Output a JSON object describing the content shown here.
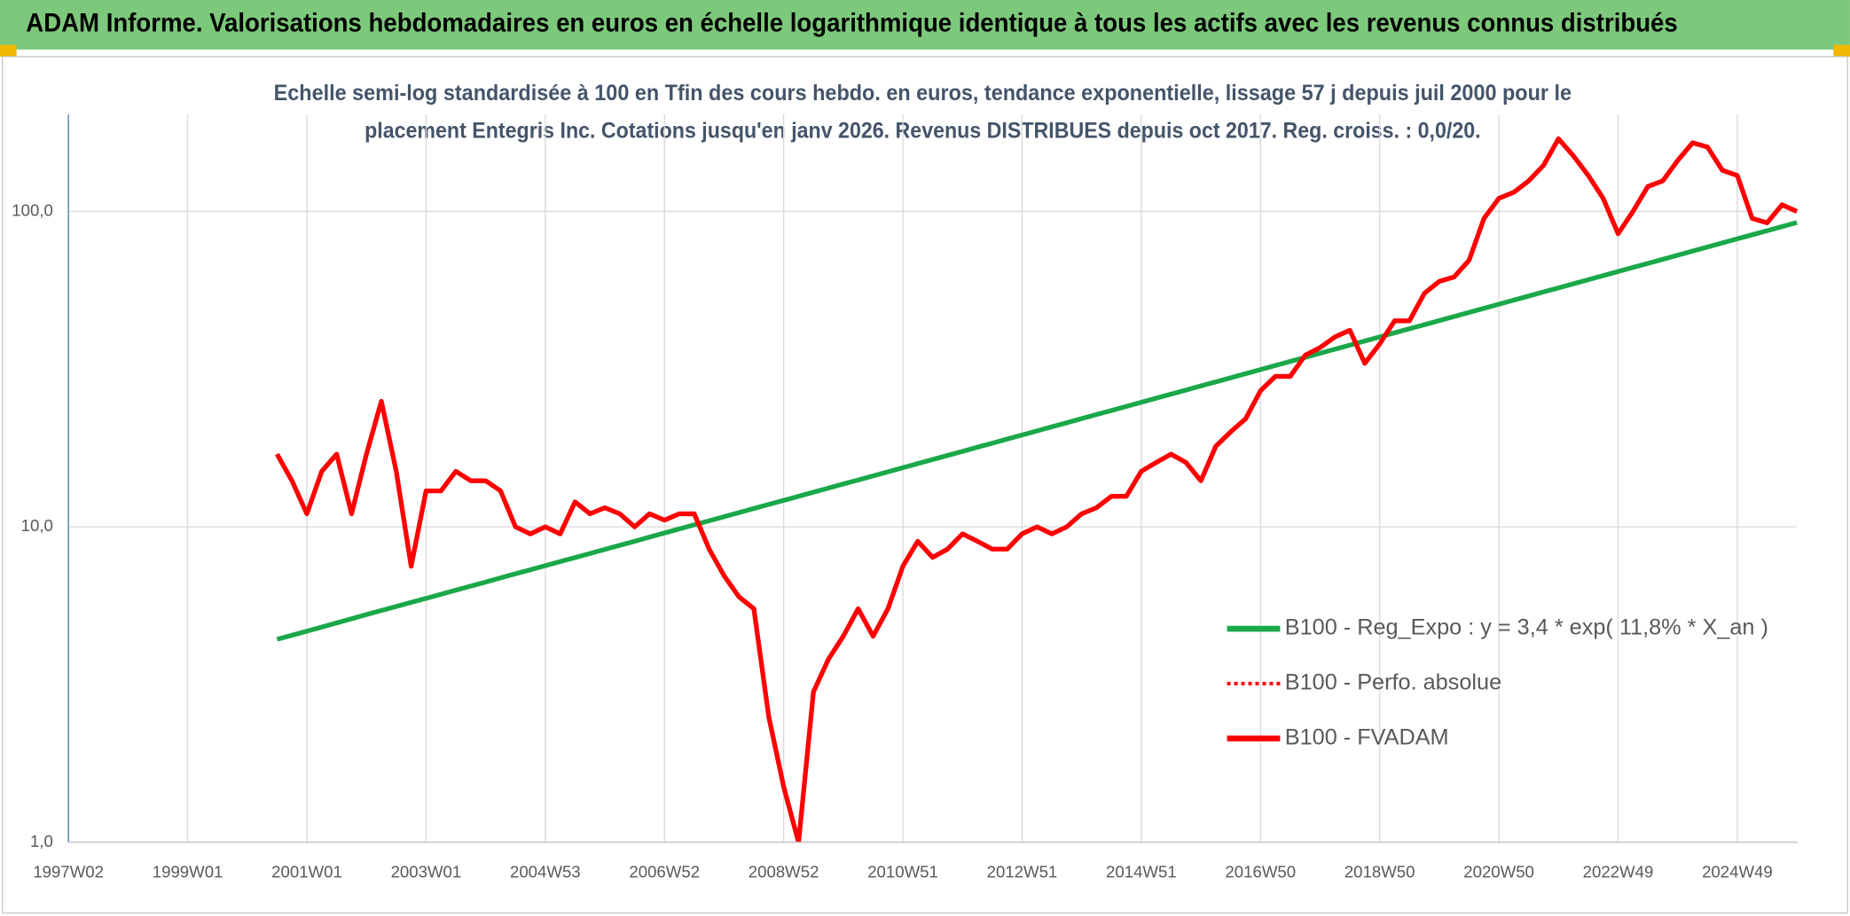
{
  "chart_data": {
    "type": "line",
    "title": "ADAM Informe. Valorisations hebdomadaires en euros en échelle logarithmique identique à tous les actifs avec les revenus connus distribués",
    "subtitle": [
      "Echelle semi-log standardisée à 100 en Tfin des cours hebdo. en euros, tendance exponentielle, lissage 57 j depuis juil 2000 pour le",
      "placement Entegris Inc. Cotations jusqu'en janv 2026. Revenus DISTRIBUES depuis oct 2017. Reg. croiss. : 0,0/20."
    ],
    "log_scale": true,
    "grid": true,
    "legend": "lower right",
    "ylim": [
      1,
      203
    ],
    "yticks": [
      {
        "value": 1,
        "label": "1,0"
      },
      {
        "value": 10,
        "label": "10,0"
      },
      {
        "value": 100,
        "label": "100,0"
      }
    ],
    "categories": [
      "1997W02",
      null,
      null,
      null,
      null,
      null,
      null,
      null,
      "1999W01",
      null,
      null,
      null,
      null,
      null,
      null,
      null,
      "2001W01",
      null,
      null,
      null,
      null,
      null,
      null,
      null,
      "2003W01",
      null,
      null,
      null,
      null,
      null,
      null,
      null,
      "2004W53",
      null,
      null,
      null,
      null,
      null,
      null,
      null,
      "2006W52",
      null,
      null,
      null,
      null,
      null,
      null,
      null,
      "2008W52",
      null,
      null,
      null,
      null,
      null,
      null,
      null,
      "2010W51",
      null,
      null,
      null,
      null,
      null,
      null,
      null,
      "2012W51",
      null,
      null,
      null,
      null,
      null,
      null,
      null,
      "2014W51",
      null,
      null,
      null,
      null,
      null,
      null,
      null,
      "2016W50",
      null,
      null,
      null,
      null,
      null,
      null,
      null,
      "2018W50",
      null,
      null,
      null,
      null,
      null,
      null,
      null,
      "2020W50",
      null,
      null,
      null,
      null,
      null,
      null,
      null,
      "2022W49",
      null,
      null,
      null,
      null,
      null,
      null,
      null,
      "2024W49",
      null,
      null,
      null,
      null
    ],
    "series": [
      {
        "name": "B100 - Reg_Expo : y = 3,4 * exp( 11,8% *  X_an )",
        "color": "#1aa84a",
        "style": "solid",
        "values": [
          null,
          null,
          null,
          null,
          null,
          null,
          null,
          null,
          null,
          null,
          null,
          null,
          null,
          null,
          4.4,
          4.53,
          4.67,
          4.81,
          4.96,
          5.11,
          5.27,
          5.43,
          5.59,
          5.76,
          5.93,
          6.11,
          6.3,
          6.49,
          6.68,
          6.89,
          7.1,
          7.31,
          7.53,
          7.76,
          7.99,
          8.23,
          8.48,
          8.74,
          9.0,
          9.28,
          9.56,
          9.85,
          10.15,
          10.45,
          10.77,
          11.1,
          11.43,
          11.78,
          12.13,
          12.5,
          12.88,
          13.27,
          13.67,
          14.08,
          14.51,
          14.95,
          15.4,
          15.87,
          16.35,
          16.84,
          17.35,
          17.88,
          18.42,
          18.98,
          19.55,
          20.14,
          20.75,
          21.38,
          22.03,
          22.7,
          23.38,
          24.09,
          24.82,
          25.57,
          26.35,
          27.14,
          27.97,
          28.81,
          29.69,
          30.59,
          31.51,
          32.47,
          33.45,
          34.46,
          35.51,
          36.58,
          37.69,
          38.83,
          40.01,
          41.22,
          42.47,
          43.75,
          45.08,
          46.44,
          47.85,
          49.3,
          50.79,
          52.33,
          53.91,
          55.55,
          57.23,
          58.96,
          60.75,
          62.59,
          64.48,
          66.43,
          68.44,
          70.52,
          72.65,
          74.85,
          77.12,
          79.45,
          81.86,
          84.33,
          86.89,
          89.52,
          92.23
        ]
      },
      {
        "name": "B100 - Perfo. absolue",
        "color": "#ff0000",
        "style": "dotted",
        "values": [
          null,
          null,
          null,
          null,
          null,
          null,
          null,
          null,
          null,
          null,
          null,
          null,
          null,
          null,
          17,
          14,
          11,
          15,
          17,
          11,
          17,
          25,
          15,
          7.5,
          13,
          13,
          15,
          14,
          14,
          13,
          10,
          9.5,
          10,
          9.5,
          12,
          11,
          11.5,
          11,
          10,
          11,
          10.5,
          11,
          11,
          8.5,
          7,
          6,
          5.5,
          2.5,
          1.5,
          1.0,
          3,
          3.8,
          4.5,
          5.5,
          4.5,
          5.5,
          7.5,
          9,
          8,
          8.5,
          9.5,
          9,
          8.5,
          8.5,
          9.5,
          10,
          9.5,
          10,
          11,
          11.5,
          12.5,
          12.5,
          15,
          16,
          17,
          16,
          14,
          18,
          20,
          22,
          27,
          30,
          30,
          35,
          37,
          40,
          42,
          33,
          38,
          45,
          45,
          55,
          60,
          62,
          70,
          95,
          110,
          115,
          125,
          140,
          170,
          150,
          130,
          110,
          85,
          100,
          120,
          125,
          145,
          165,
          160,
          135,
          130,
          95,
          92,
          105,
          100
        ]
      },
      {
        "name": "B100 - FVADAM",
        "color": "#ff0000",
        "style": "solid",
        "values": [
          null,
          null,
          null,
          null,
          null,
          null,
          null,
          null,
          null,
          null,
          null,
          null,
          null,
          null,
          17,
          14,
          11,
          15,
          17,
          11,
          17,
          25,
          15,
          7.5,
          13,
          13,
          15,
          14,
          14,
          13,
          10,
          9.5,
          10,
          9.5,
          12,
          11,
          11.5,
          11,
          10,
          11,
          10.5,
          11,
          11,
          8.5,
          7,
          6,
          5.5,
          2.5,
          1.5,
          1.0,
          3,
          3.8,
          4.5,
          5.5,
          4.5,
          5.5,
          7.5,
          9,
          8,
          8.5,
          9.5,
          9,
          8.5,
          8.5,
          9.5,
          10,
          9.5,
          10,
          11,
          11.5,
          12.5,
          12.5,
          15,
          16,
          17,
          16,
          14,
          18,
          20,
          22,
          27,
          30,
          30,
          35,
          37,
          40,
          42,
          33,
          38,
          45,
          45,
          55,
          60,
          62,
          70,
          95,
          110,
          115,
          125,
          140,
          170,
          150,
          130,
          110,
          85,
          100,
          120,
          125,
          145,
          165,
          160,
          135,
          130,
          95,
          92,
          105,
          100
        ]
      }
    ]
  }
}
